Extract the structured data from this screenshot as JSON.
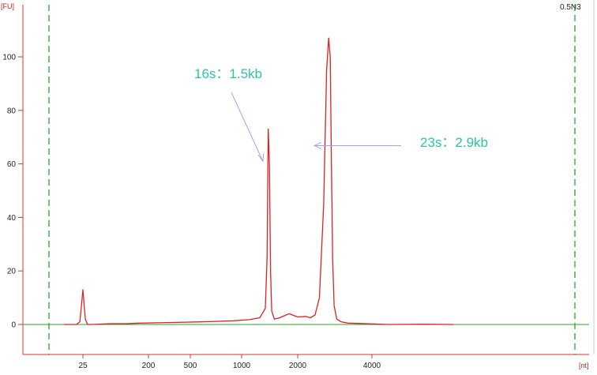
{
  "sample_label": "0.5N3",
  "chart_data": {
    "type": "line",
    "y_unit": "[FU]",
    "x_unit": "[nt]",
    "xlim": [
      0,
      7500
    ],
    "ylim": [
      -10,
      116
    ],
    "x_scale": "log",
    "y_ticks": [
      0,
      20,
      40,
      60,
      80,
      100
    ],
    "x_ticks": [
      25,
      200,
      500,
      1000,
      2000,
      4000
    ],
    "colors": {
      "trace": "#dd2222",
      "baseline": "#2fa02f",
      "markers": "#2fa02f",
      "axis": "#dd3333",
      "arrow": "#9aa6ee",
      "annotation": "#2ec4a0"
    },
    "series": [
      {
        "x": [
          15,
          21,
          23,
          24,
          25,
          26,
          27,
          29,
          32,
          60,
          100,
          150,
          300,
          600,
          900,
          1100,
          1250,
          1340,
          1370,
          1390,
          1410,
          1430,
          1450,
          1500,
          1600,
          1800,
          2000,
          2150,
          2250,
          2350,
          2450,
          2550,
          2620,
          2670,
          2710,
          2740,
          2770,
          2810,
          2880,
          3000,
          3200,
          3800,
          4200,
          4600,
          5000
        ],
        "y": [
          0,
          0,
          1,
          7,
          13,
          7,
          2,
          0,
          0,
          0.3,
          0.3,
          0.5,
          0.7,
          1.0,
          1.4,
          1.8,
          2.5,
          6,
          25,
          73,
          60,
          20,
          5,
          2,
          2.5,
          4,
          2.8,
          3,
          2.5,
          3.5,
          10,
          45,
          95,
          107,
          100,
          60,
          25,
          7,
          2,
          1,
          0.5,
          0.3,
          0,
          0.1,
          0
        ]
      }
    ],
    "annotations": [
      {
        "text": "16s：1.5kb",
        "points_to_x": 1300,
        "points_to_y": 61
      },
      {
        "text": "23s：2.9kb",
        "points_to_x": 3000,
        "points_to_y": 68
      }
    ]
  }
}
